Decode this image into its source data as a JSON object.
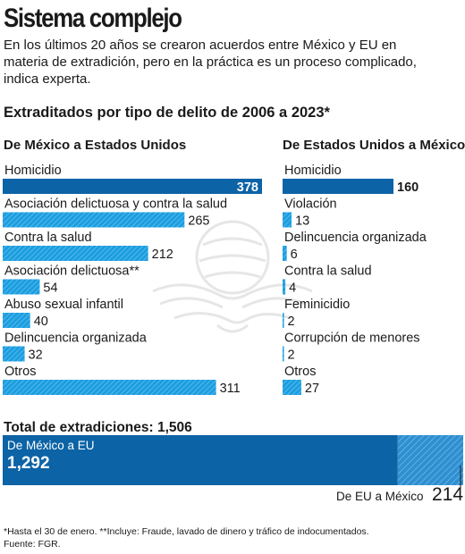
{
  "header": {
    "title": "Sistema complejo",
    "subtitle": "En los últimos 20 años se crearon acuerdos entre México y EU en materia de extradición, pero en la práctica es un proceso complicado, indica experta."
  },
  "chart_title": "Extraditados por tipo de delito de 2006 a 2023*",
  "colors": {
    "bar": "#1b9ee0",
    "bar_dark": "#0c63a6",
    "hatch": "#2f8fd0",
    "text": "#1a1a1a"
  },
  "chart_data": [
    {
      "type": "bar",
      "orientation": "horizontal",
      "title": "De México a Estados Unidos",
      "categories": [
        "Homicidio",
        "Asociación delictuosa y contra la salud",
        "Contra la salud",
        "Asociación delictuosa**",
        "Abuso sexual infantil",
        "Delincuencia organizada",
        "Otros"
      ],
      "values": [
        378,
        265,
        212,
        54,
        40,
        32,
        311
      ],
      "highlight_index": 0,
      "value_labels": [
        "378",
        "265",
        "212",
        "54",
        "40",
        "32",
        "311"
      ]
    },
    {
      "type": "bar",
      "orientation": "horizontal",
      "title": "De Estados Unidos a México",
      "categories": [
        "Homicidio",
        "Violación",
        "Delincuencia organizada",
        "Contra la salud",
        "Feminicidio",
        "Corrupción de menores",
        "Otros"
      ],
      "values": [
        160,
        13,
        6,
        4,
        2,
        2,
        27
      ],
      "highlight_index": 0,
      "value_labels": [
        "160",
        "13",
        "6",
        "4",
        "2",
        "2",
        "27"
      ]
    },
    {
      "type": "bar",
      "orientation": "stacked",
      "title": "Total de extradiciones: 1,506",
      "series": [
        {
          "name": "De México a EU",
          "value": 1292,
          "value_label": "1,292"
        },
        {
          "name": "De EU a México",
          "value": 214,
          "value_label": "214"
        }
      ],
      "total": 1506
    }
  ],
  "footnotes": {
    "note": "*Hasta el 30 de enero. **Incluye: Fraude, lavado de dinero y tráfico de indocumentados.",
    "source": "Fuente: FGR."
  }
}
